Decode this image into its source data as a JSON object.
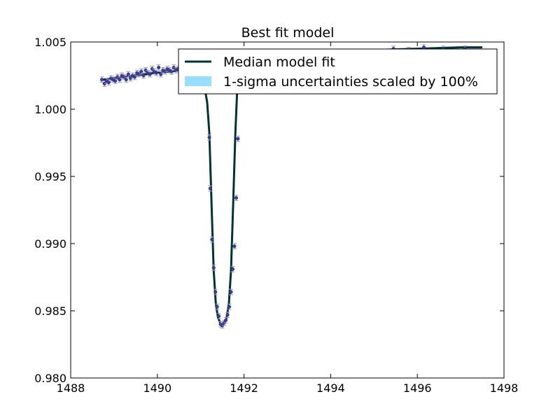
{
  "chart_data": {
    "type": "scatter",
    "title": "Best fit model",
    "xlabel": "",
    "ylabel": "",
    "xlim": [
      1488,
      1498
    ],
    "ylim": [
      0.98,
      1.005
    ],
    "x_ticks": [
      1488,
      1490,
      1492,
      1494,
      1496,
      1498
    ],
    "y_ticks": [
      0.98,
      0.985,
      0.99,
      0.995,
      1.0,
      1.005
    ],
    "x_tick_labels": [
      "1488",
      "1490",
      "1492",
      "1494",
      "1496",
      "1498"
    ],
    "y_tick_labels": [
      "0.980",
      "0.985",
      "0.990",
      "0.995",
      "1.000",
      "1.005"
    ],
    "grid": false,
    "legend": {
      "position": "top-right",
      "entries": [
        {
          "label": "Median model fit",
          "color": "#003333",
          "kind": "line"
        },
        {
          "label": "1-sigma uncertainties scaled by 100%",
          "color": "#99ddff",
          "kind": "patch"
        }
      ]
    },
    "colors": {
      "model_line": "#003333",
      "data_points": "#3b3b9b",
      "error_bars": "#9a9ab0",
      "uncertainty_band": "#99ddff"
    },
    "series": [
      {
        "name": "Median model fit",
        "kind": "line",
        "x": [
          1488.7,
          1489.0,
          1489.5,
          1490.0,
          1490.5,
          1490.9,
          1491.0,
          1491.08,
          1491.15,
          1491.2,
          1491.25,
          1491.3,
          1491.35,
          1491.4,
          1491.45,
          1491.5,
          1491.55,
          1491.6,
          1491.65,
          1491.7,
          1491.75,
          1491.8,
          1491.85,
          1491.9,
          1491.95,
          1492.0,
          1492.5,
          1493.0,
          1494.0,
          1495.0,
          1496.0,
          1497.0,
          1497.5
        ],
        "y": [
          1.00218,
          1.0023,
          1.00252,
          1.00272,
          1.00288,
          1.00296,
          1.00292,
          1.0018,
          1.0005,
          0.9982,
          0.993,
          0.988,
          0.9855,
          0.9845,
          0.9841,
          0.984,
          0.9841,
          0.9845,
          0.9855,
          0.988,
          0.993,
          0.9982,
          1.002,
          1.0035,
          1.0038,
          1.0039,
          1.0041,
          1.0042,
          1.0043,
          1.0044,
          1.0045,
          1.0046,
          1.0046
        ]
      },
      {
        "name": "data",
        "kind": "errorbar",
        "yerr": 0.0002,
        "x": [
          1488.72,
          1488.78,
          1488.83,
          1488.88,
          1488.93,
          1488.98,
          1489.03,
          1489.08,
          1489.13,
          1489.18,
          1489.23,
          1489.28,
          1489.33,
          1489.38,
          1489.43,
          1489.48,
          1489.53,
          1489.58,
          1489.63,
          1489.68,
          1489.73,
          1489.78,
          1489.83,
          1489.88,
          1489.93,
          1489.98,
          1490.03,
          1490.08,
          1490.13,
          1490.18,
          1490.23,
          1490.28,
          1490.33,
          1490.38,
          1490.43,
          1490.48,
          1490.53,
          1490.58,
          1491.2,
          1491.22,
          1491.26,
          1491.3,
          1491.34,
          1491.38,
          1491.42,
          1491.46,
          1491.5,
          1491.54,
          1491.58,
          1491.62,
          1491.66,
          1491.7,
          1491.74,
          1491.78,
          1491.82,
          1491.86,
          1495.45,
          1495.8,
          1496.15,
          1496.6,
          1497.1
        ],
        "y": [
          1.0022,
          1.0019,
          1.0021,
          1.002,
          1.0023,
          1.0022,
          1.0021,
          1.0024,
          1.0022,
          1.0025,
          1.0024,
          1.0022,
          1.0026,
          1.0023,
          1.0025,
          1.0024,
          1.0027,
          1.0026,
          1.0028,
          1.0025,
          1.0029,
          1.0027,
          1.0026,
          1.003,
          1.0028,
          1.0027,
          1.0031,
          1.0026,
          1.0029,
          1.0028,
          1.003,
          1.0029,
          1.0028,
          1.0031,
          1.0029,
          1.003,
          1.0031,
          1.003,
          0.9979,
          0.9941,
          0.9903,
          0.9882,
          0.9864,
          0.9853,
          0.9846,
          0.984,
          0.9839,
          0.9841,
          0.9843,
          0.9847,
          0.9853,
          0.9864,
          0.9881,
          0.9898,
          0.9934,
          0.9978,
          1.0045,
          1.0044,
          1.0046,
          1.0045,
          1.0045
        ]
      }
    ]
  }
}
